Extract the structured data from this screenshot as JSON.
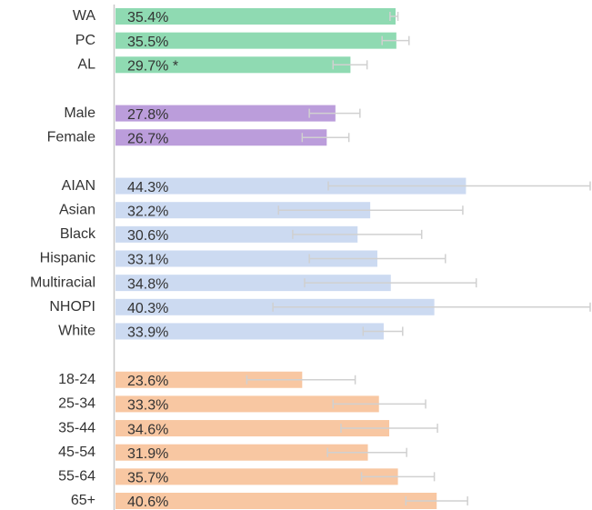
{
  "chart_data": {
    "type": "bar",
    "orientation": "horizontal",
    "xlim": [
      0,
      60
    ],
    "groups": [
      {
        "color": "#8fdab2",
        "categories": [
          "WA",
          "PC",
          "AL"
        ],
        "values": [
          35.4,
          35.5,
          29.7
        ],
        "value_labels": [
          "35.4%",
          "35.5%",
          "29.7% *"
        ],
        "error_low": [
          34.7,
          33.7,
          27.5
        ],
        "error_high": [
          35.7,
          37.1,
          31.8
        ]
      },
      {
        "color": "#bb9ddb",
        "categories": [
          "Male",
          "Female"
        ],
        "values": [
          27.8,
          26.7
        ],
        "value_labels": [
          "27.8%",
          "26.7%"
        ],
        "error_low": [
          24.5,
          23.6
        ],
        "error_high": [
          30.9,
          29.5
        ]
      },
      {
        "color": "#ccdaf1",
        "categories": [
          "AIAN",
          "Asian",
          "Black",
          "Hispanic",
          "Multiracial",
          "NHOPI",
          "White"
        ],
        "values": [
          44.3,
          32.2,
          30.6,
          33.1,
          34.8,
          40.3,
          33.9
        ],
        "value_labels": [
          "44.3%",
          "32.2%",
          "30.6%",
          "33.1%",
          "34.8%",
          "40.3%",
          "33.9%"
        ],
        "error_low": [
          26.9,
          20.6,
          22.4,
          24.5,
          23.9,
          19.9,
          31.3
        ],
        "error_high": [
          60,
          43.9,
          38.7,
          41.7,
          45.6,
          60,
          36.3
        ]
      },
      {
        "color": "#f8c7a2",
        "categories": [
          "18-24",
          "25-34",
          "35-44",
          "45-54",
          "55-64",
          "65+"
        ],
        "values": [
          23.6,
          33.3,
          34.6,
          31.9,
          35.7,
          40.6
        ],
        "value_labels": [
          "23.6%",
          "33.3%",
          "34.6%",
          "31.9%",
          "35.7%",
          "40.6%"
        ],
        "error_low": [
          16.6,
          27.5,
          28.5,
          26.8,
          31.1,
          36.7
        ],
        "error_high": [
          30.3,
          39.2,
          40.7,
          36.8,
          40.3,
          44.5
        ]
      }
    ]
  }
}
